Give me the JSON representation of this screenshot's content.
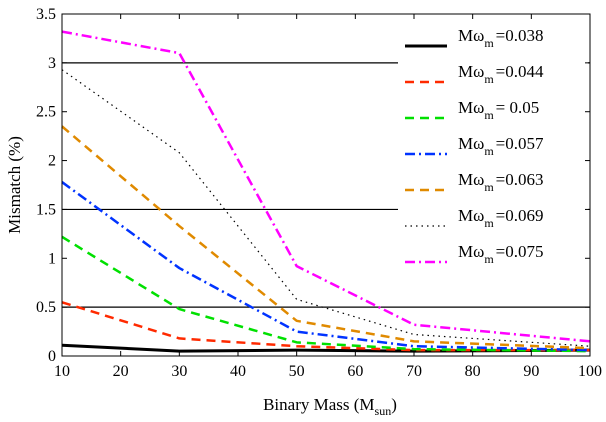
{
  "chart_data": {
    "type": "line",
    "xlabel": "Binary Mass (M",
    "xlabel_sub": "sun",
    "xlabel_close": ")",
    "ylabel": "Mismatch (%)",
    "xlim": [
      10,
      100
    ],
    "ylim": [
      0,
      3.5
    ],
    "xticks": [
      10,
      20,
      30,
      40,
      50,
      60,
      70,
      80,
      90,
      100
    ],
    "yticks": [
      0,
      0.5,
      1,
      1.5,
      2,
      2.5,
      3,
      3.5
    ],
    "ytick_labels": [
      "0",
      "0.5",
      "1",
      "1.5",
      "2",
      "2.5",
      "3",
      "3.5"
    ],
    "grid": false,
    "legend_position": "top-right",
    "reference_lines": [
      0.5,
      1.5,
      3.0
    ],
    "legend_prefix": "Mω",
    "legend_sub": "m",
    "x": [
      10,
      30,
      50,
      70,
      100
    ],
    "series": [
      {
        "name": "=0.038",
        "color": "#000000",
        "style": "solid",
        "width": 3,
        "values": [
          0.11,
          0.05,
          0.06,
          0.05,
          0.06
        ]
      },
      {
        "name": "=0.044",
        "color": "#ff2a00",
        "style": "dashed",
        "width": 2.5,
        "values": [
          0.55,
          0.18,
          0.1,
          0.06,
          0.06
        ]
      },
      {
        "name": "= 0.05",
        "color": "#00e000",
        "style": "dashed",
        "width": 2.5,
        "values": [
          1.22,
          0.48,
          0.14,
          0.07,
          0.05
        ]
      },
      {
        "name": "=0.057",
        "color": "#0033ff",
        "style": "dashdot",
        "width": 2.5,
        "values": [
          1.78,
          0.9,
          0.25,
          0.1,
          0.06
        ]
      },
      {
        "name": "=0.063",
        "color": "#e08a00",
        "style": "dashed",
        "width": 2.5,
        "values": [
          2.35,
          1.33,
          0.36,
          0.15,
          0.08
        ]
      },
      {
        "name": "=0.069",
        "color": "#000000",
        "style": "dotted",
        "width": 1.2,
        "values": [
          2.93,
          2.08,
          0.58,
          0.22,
          0.1
        ]
      },
      {
        "name": "=0.075",
        "color": "#ff00ff",
        "style": "dashdot",
        "width": 2.5,
        "values": [
          3.32,
          3.1,
          0.92,
          0.32,
          0.15
        ]
      }
    ]
  }
}
